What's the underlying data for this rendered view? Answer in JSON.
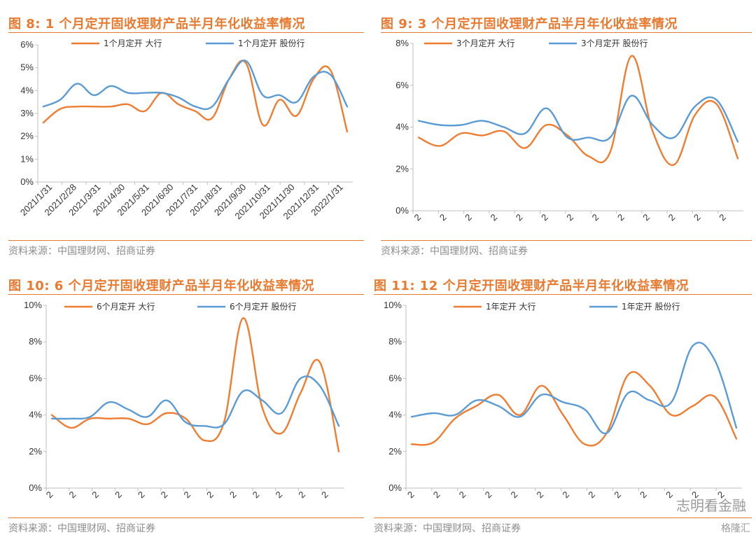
{
  "colors": {
    "orange": "#ee7d31",
    "blue": "#5b9bd5",
    "title": "#e8792f"
  },
  "source": "资料来源：中国理财网、招商证券",
  "watermark": {
    "main": "志明看金融",
    "sub": "格隆汇"
  },
  "chart_data": [
    {
      "type": "line",
      "title": "图 8:  1 个月定开固收理财产品半月年化收益率情况",
      "ylim": [
        0,
        6
      ],
      "yticks": [
        "0%",
        "1%",
        "2%",
        "3%",
        "4%",
        "5%",
        "6%"
      ],
      "xtick_labels": [
        "2021/1/31",
        "2021/2/28",
        "2021/3/31",
        "2021/4/30",
        "2021/5/31",
        "2021/6/30",
        "2021/7/31",
        "2021/8/31",
        "2021/9/30",
        "2021/10/31",
        "2021/11/30",
        "2021/12/31",
        "2022/1/31"
      ],
      "legend_position": "top",
      "series": [
        {
          "name": "1个月定开  大行",
          "color": "#ee7d31",
          "values": [
            2.6,
            3.2,
            3.3,
            3.3,
            3.3,
            3.4,
            3.1,
            3.9,
            3.4,
            3.1,
            2.8,
            4.5,
            5.2,
            2.5,
            3.6,
            2.9,
            4.5,
            4.9,
            2.2
          ]
        },
        {
          "name": "1个月定开  股份行",
          "color": "#5b9bd5",
          "values": [
            3.3,
            3.6,
            4.3,
            3.8,
            4.2,
            3.9,
            3.9,
            3.9,
            3.7,
            3.3,
            3.3,
            4.5,
            5.3,
            3.8,
            3.8,
            3.5,
            4.6,
            4.7,
            3.3
          ]
        }
      ]
    },
    {
      "type": "line",
      "title": "图 9:  3 个月定开固收理财产品半月年化收益率情况",
      "ylim": [
        0,
        8
      ],
      "yticks": [
        "0%",
        "2%",
        "4%",
        "6%",
        "8%"
      ],
      "xtick_labels": [
        "2",
        "2",
        "2",
        "2",
        "2",
        "2",
        "2",
        "2",
        "2",
        "2",
        "2",
        "2",
        "2"
      ],
      "legend_position": "top",
      "series": [
        {
          "name": "3个月定开  大行",
          "color": "#ee7d31",
          "values": [
            3.5,
            3.1,
            3.7,
            3.6,
            3.8,
            3.0,
            4.1,
            3.6,
            2.6,
            2.8,
            7.4,
            3.8,
            2.2,
            4.6,
            5.1,
            2.5
          ]
        },
        {
          "name": "3个月定开  股份行",
          "color": "#5b9bd5",
          "values": [
            4.3,
            4.1,
            4.1,
            4.3,
            4.0,
            3.7,
            4.9,
            3.5,
            3.5,
            3.5,
            5.5,
            4.1,
            3.5,
            5.0,
            5.3,
            3.3
          ]
        }
      ]
    },
    {
      "type": "line",
      "title": "图 10:  6 个月定开固收理财产品半月年化收益率情况",
      "ylim": [
        0,
        10
      ],
      "yticks": [
        "0%",
        "2%",
        "4%",
        "6%",
        "8%",
        "10%"
      ],
      "xtick_labels": [
        "2",
        "2",
        "2",
        "2",
        "2",
        "2",
        "2",
        "2",
        "2",
        "2",
        "2",
        "2",
        "2"
      ],
      "legend_position": "top",
      "series": [
        {
          "name": "6个月定开  大行",
          "color": "#ee7d31",
          "values": [
            4.0,
            3.3,
            3.8,
            3.8,
            3.8,
            3.5,
            4.1,
            3.8,
            2.6,
            3.6,
            9.3,
            4.4,
            3.0,
            5.2,
            6.9,
            2.0
          ]
        },
        {
          "name": "6个月定开  股份行",
          "color": "#5b9bd5",
          "values": [
            3.8,
            3.8,
            3.9,
            4.7,
            4.3,
            3.9,
            4.8,
            3.6,
            3.4,
            3.5,
            5.3,
            4.8,
            4.1,
            6.0,
            5.6,
            3.4
          ]
        }
      ]
    },
    {
      "type": "line",
      "title": "图 11:  12 个月定开固收理财产品半月年化收益率情况",
      "ylim": [
        0,
        10
      ],
      "yticks": [
        "0%",
        "2%",
        "4%",
        "6%",
        "8%",
        "10%"
      ],
      "xtick_labels": [
        "2",
        "2",
        "2",
        "2",
        "2",
        "2",
        "2",
        "2",
        "2",
        "2",
        "2",
        "2",
        "2"
      ],
      "legend_position": "top",
      "series": [
        {
          "name": "1年定开  大行",
          "color": "#ee7d31",
          "values": [
            2.4,
            2.5,
            3.8,
            4.5,
            5.1,
            4.0,
            5.6,
            4.0,
            2.4,
            3.0,
            6.2,
            5.6,
            4.0,
            4.5,
            5.0,
            2.7
          ]
        },
        {
          "name": "1年定开  股份行",
          "color": "#5b9bd5",
          "values": [
            3.9,
            4.1,
            4.0,
            4.8,
            4.5,
            3.9,
            5.1,
            4.7,
            4.3,
            3.0,
            5.2,
            4.8,
            4.7,
            7.8,
            7.0,
            3.3
          ]
        }
      ]
    }
  ]
}
